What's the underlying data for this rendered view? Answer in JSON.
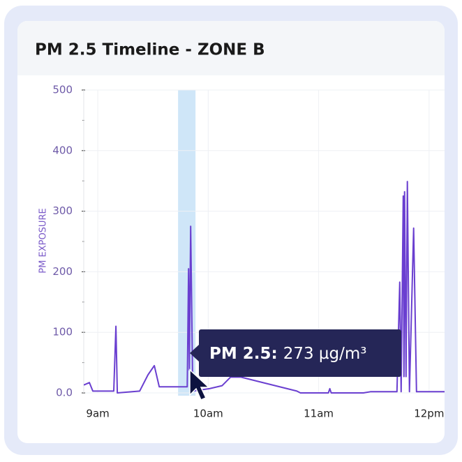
{
  "chart_data": {
    "type": "line",
    "title": "PM 2.5 Timeline - ZONE B",
    "y_label": "PM EXPOSURE",
    "x": [
      8.873,
      8.924,
      8.955,
      9.145,
      9.164,
      9.177,
      9.379,
      9.455,
      9.512,
      9.557,
      9.81,
      9.822,
      9.829,
      9.841,
      9.86,
      10.012,
      10.126,
      10.202,
      10.297,
      10.803,
      10.835,
      11.088,
      11.101,
      11.114,
      11.405,
      11.468,
      11.709,
      11.734,
      11.747,
      11.766,
      11.772,
      11.778,
      11.791,
      11.803,
      11.822,
      11.86,
      11.886,
      12.14
    ],
    "series": [
      {
        "name": "PM 2.5",
        "color": "#6a3fd0",
        "values": [
          13,
          17,
          3,
          3,
          110,
          0,
          3,
          30,
          45,
          10,
          10,
          205,
          38,
          275,
          3,
          7,
          12,
          26,
          26,
          3,
          0,
          0,
          7,
          0,
          0,
          2,
          2,
          183,
          2,
          325,
          27,
          332,
          27,
          349,
          2,
          272,
          2,
          2
        ]
      }
    ],
    "xlim": [
      8.873,
      12.14
    ],
    "xticks": [
      {
        "value": 9,
        "label": "9am"
      },
      {
        "value": 10,
        "label": "10am"
      },
      {
        "value": 11,
        "label": "11am"
      },
      {
        "value": 12,
        "label": "12pm"
      }
    ],
    "ylim": [
      0,
      500
    ],
    "yticks": [
      {
        "value": 0,
        "label": "0.0"
      },
      100,
      200,
      300,
      400,
      500
    ],
    "yminor_ticks": [
      50,
      150,
      250,
      350,
      450
    ],
    "grid": true,
    "highlight": [
      9.727,
      9.885
    ],
    "tooltip": {
      "label": "PM 2.5:",
      "value": "273 µg/m³"
    }
  }
}
